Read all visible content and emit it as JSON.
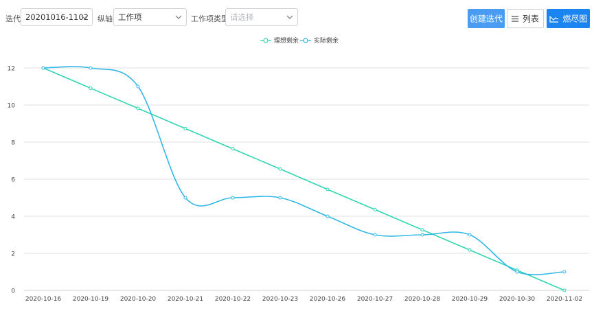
{
  "toolbar": {
    "iteration_label": "迭代:",
    "iteration_value": "20201016-1102",
    "axis_label": "纵轴:",
    "axis_value": "工作项",
    "type_label": "工作项类型:",
    "type_placeholder": "请选择",
    "create_label": "创建迭代",
    "list_label": "列表",
    "burndown_label": "燃尽图"
  },
  "colors": {
    "ideal": "#2ed6b4",
    "actual": "#2fb7e6",
    "primary": "#1a84f0",
    "grid": "#e2e2e2"
  },
  "chart_data": {
    "type": "line",
    "categories": [
      "2020-10-16",
      "2020-10-19",
      "2020-10-20",
      "2020-10-21",
      "2020-10-22",
      "2020-10-23",
      "2020-10-26",
      "2020-10-27",
      "2020-10-28",
      "2020-10-29",
      "2020-10-30",
      "2020-11-02"
    ],
    "series": [
      {
        "name": "理想剩余",
        "values": [
          12,
          10.91,
          9.82,
          8.73,
          7.64,
          6.55,
          5.45,
          4.36,
          3.27,
          2.18,
          1.09,
          0
        ]
      },
      {
        "name": "实际剩余",
        "values": [
          12,
          12,
          11,
          5,
          5,
          5,
          4,
          3,
          3,
          3,
          1,
          1
        ]
      }
    ],
    "y_ticks": [
      "0",
      "2",
      "4",
      "6",
      "8",
      "10",
      "12"
    ],
    "ylim": [
      0,
      12
    ],
    "grid": true,
    "legend": "top-center"
  }
}
